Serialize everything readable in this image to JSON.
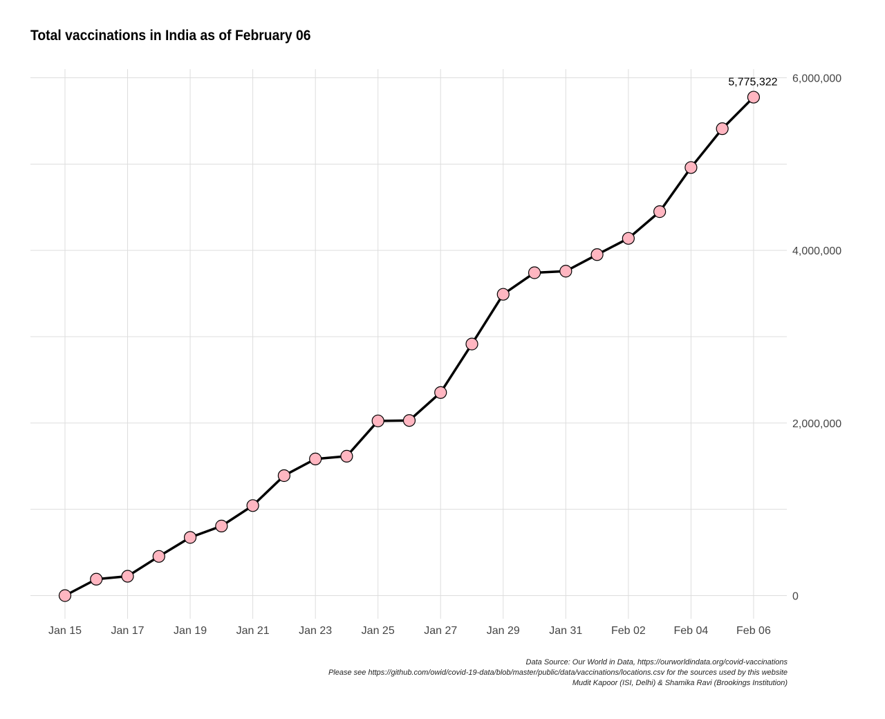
{
  "chart_data": {
    "type": "line",
    "title": "Total vaccinations in India as of February 06",
    "xlabel": "",
    "ylabel": "",
    "x": [
      "Jan 15",
      "Jan 16",
      "Jan 17",
      "Jan 18",
      "Jan 19",
      "Jan 20",
      "Jan 21",
      "Jan 22",
      "Jan 23",
      "Jan 24",
      "Jan 25",
      "Jan 26",
      "Jan 27",
      "Jan 28",
      "Jan 29",
      "Jan 30",
      "Jan 31",
      "Feb 01",
      "Feb 02",
      "Feb 03",
      "Feb 04",
      "Feb 05",
      "Feb 06"
    ],
    "series": [
      {
        "values": [
          0,
          190000,
          224000,
          454000,
          674000,
          806000,
          1043000,
          1390000,
          1583000,
          1615000,
          2024000,
          2029000,
          2353000,
          2915000,
          3491000,
          3741000,
          3759000,
          3951000,
          4139000,
          4449000,
          4960000,
          5410000,
          5775322
        ]
      }
    ],
    "x_tick_labels": [
      "Jan 15",
      "Jan 17",
      "Jan 19",
      "Jan 21",
      "Jan 23",
      "Jan 25",
      "Jan 27",
      "Jan 29",
      "Jan 31",
      "Feb 02",
      "Feb 04",
      "Feb 06"
    ],
    "y_tick_labels": [
      "0",
      "2,000,000",
      "4,000,000",
      "6,000,000"
    ],
    "y_ticks": [
      0,
      2000000,
      4000000,
      6000000
    ],
    "ylim": [
      -100000,
      6000000
    ],
    "annotation": {
      "text": "5,775,322",
      "x": "Feb 06",
      "y": 5775322
    },
    "y_axis_position": "right",
    "grid": true,
    "legend": "none",
    "colors": {
      "line": "#000000",
      "marker_fill": "#ffb6c1",
      "marker_stroke": "#000000",
      "grid": "#dddddd"
    }
  },
  "caption": {
    "line1": "Data Source: Our World in Data, https://ourworldindata.org/covid-vaccinations",
    "line2": "Please see https://github.com/owid/covid-19-data/blob/master/public/data/vaccinations/locations.csv for the sources used by this website",
    "line3": "Mudit Kapoor (ISI, Delhi) & Shamika Ravi (Brookings Institution)"
  }
}
